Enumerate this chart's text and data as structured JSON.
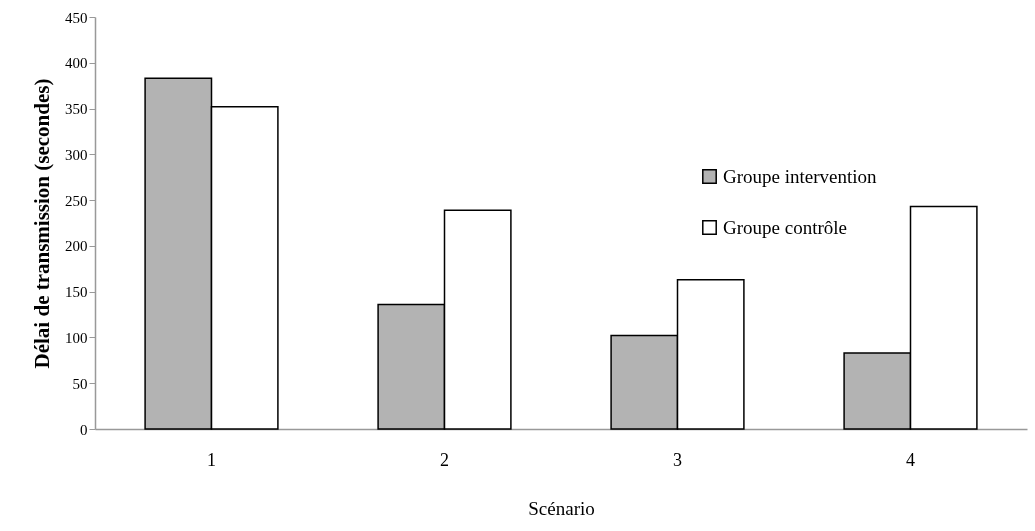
{
  "chart_data": {
    "type": "bar",
    "xlabel": "Scénario",
    "ylabel": "Délai de transmission (secondes)",
    "categories": [
      "1",
      "2",
      "3",
      "4"
    ],
    "series": [
      {
        "name": "Groupe intervention",
        "color": "#b3b3b3",
        "values": [
          383,
          136,
          102,
          83
        ]
      },
      {
        "name": "Groupe contrôle",
        "color": "#ffffff",
        "values": [
          352,
          239,
          163,
          243
        ]
      }
    ],
    "ylim": [
      0,
      450
    ],
    "yticks": [
      0,
      50,
      100,
      150,
      200,
      250,
      300,
      350,
      400,
      450
    ],
    "grid": false,
    "legend": "top right"
  }
}
